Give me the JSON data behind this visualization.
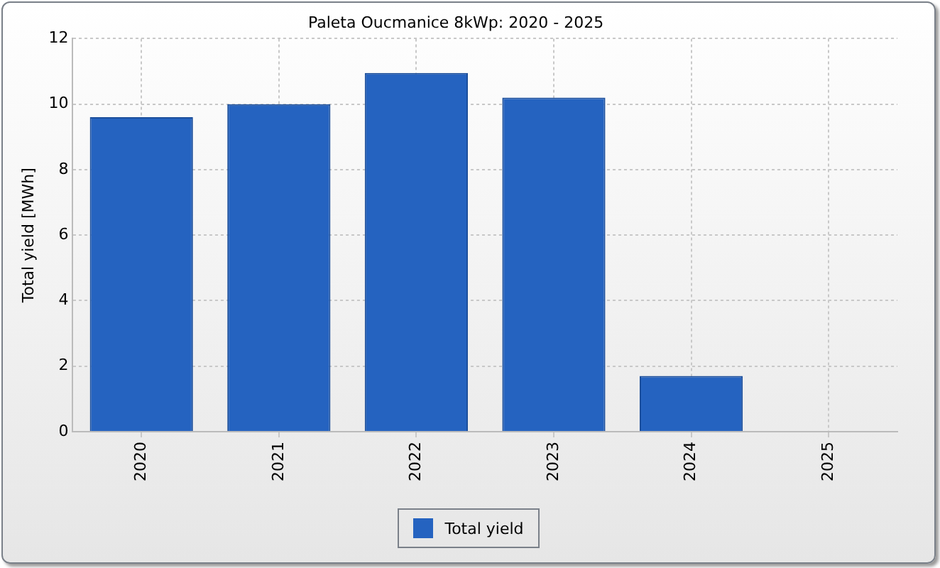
{
  "chart_data": {
    "type": "bar",
    "title": "Paleta Oucmanice 8kWp: 2020 - 2025",
    "ylabel": "Total yield [MWh]",
    "categories": [
      "2020",
      "2021",
      "2022",
      "2023",
      "2024",
      "2025"
    ],
    "series": [
      {
        "name": "Total yield",
        "color": "#2563c0",
        "values": [
          9.6,
          10.0,
          10.95,
          10.2,
          1.7,
          0
        ]
      }
    ],
    "ylim": [
      0,
      12
    ],
    "yticks": [
      0,
      2,
      4,
      6,
      8,
      10,
      12
    ],
    "grid": true,
    "legend": "bottom"
  }
}
